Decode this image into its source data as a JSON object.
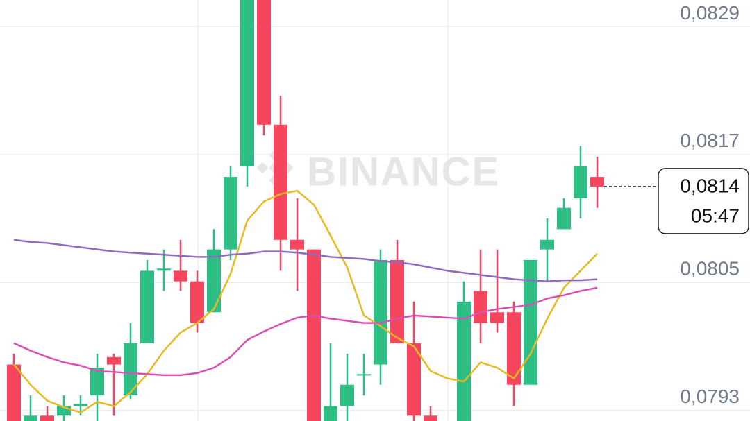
{
  "chart_data": {
    "type": "candlestick",
    "watermark": "BINANCE",
    "categories": [
      null,
      null,
      null,
      null,
      null,
      null,
      null,
      null,
      null,
      null,
      null,
      null,
      null,
      null,
      null,
      null,
      null,
      null,
      null,
      null,
      null,
      null,
      null,
      null,
      null,
      null,
      null,
      null,
      null,
      null,
      null,
      null,
      null,
      null,
      null,
      null
    ],
    "open": [
      0.07973,
      0.0792,
      0.07925,
      0.07925,
      0.07934,
      0.07944,
      0.0798,
      0.07944,
      0.07993,
      0.08061,
      0.08061,
      0.08051,
      0.08022,
      0.08081,
      0.08159,
      0.08315,
      0.08198,
      0.0809,
      0.08081,
      0.0792,
      0.07934,
      0.07964,
      0.07973,
      0.08071,
      0.07993,
      0.07925,
      null,
      0.0792,
      0.08042,
      0.08022,
      0.08022,
      0.07954,
      0.08081,
      0.081,
      0.08129,
      0.08149
    ],
    "high": [
      0.07983,
      0.07944,
      0.07934,
      0.07944,
      0.07944,
      0.07983,
      0.07983,
      0.08012,
      0.08071,
      0.08081,
      0.0809,
      0.08061,
      0.081,
      0.08159,
      0.08315,
      0.08315,
      0.08225,
      0.08129,
      0.08081,
      0.07993,
      0.07983,
      0.07983,
      0.08081,
      0.0809,
      0.08032,
      0.07934,
      null,
      0.08051,
      0.08081,
      0.08081,
      0.08032,
      0.08071,
      0.0811,
      0.08129,
      0.08178,
      0.08168
    ],
    "low": [
      0.0792,
      0.0792,
      0.0792,
      0.0792,
      0.07925,
      0.0792,
      0.07925,
      0.0794,
      0.07993,
      0.08042,
      0.08042,
      0.08003,
      0.08022,
      0.08071,
      0.0814,
      0.08188,
      0.08061,
      0.08042,
      0.0792,
      0.0792,
      0.0792,
      0.07944,
      0.07954,
      0.07993,
      0.0792,
      0.0792,
      null,
      0.0792,
      0.07993,
      0.08003,
      0.07934,
      0.07954,
      0.08051,
      0.081,
      0.0811,
      0.0812
    ],
    "close": [
      0.0792,
      0.07925,
      0.0792,
      0.07934,
      0.07936,
      0.0797,
      0.07973,
      0.07993,
      0.08061,
      0.08063,
      0.08051,
      0.08012,
      0.08081,
      0.08149,
      0.08315,
      0.08198,
      0.0809,
      0.08081,
      0.0792,
      0.07934,
      0.07954,
      0.07964,
      0.08071,
      0.07993,
      0.07925,
      0.0792,
      null,
      0.08032,
      0.08012,
      0.08012,
      0.07954,
      0.08071,
      0.0809,
      0.0812,
      0.08159,
      0.0814
    ],
    "up_color": "#2ebd85",
    "down_color": "#f6465d",
    "series": [
      {
        "color": "#e8b923",
        "values": [
          0.07973,
          0.07954,
          0.07939,
          0.07933,
          0.07928,
          0.07938,
          0.07934,
          0.07947,
          0.07964,
          0.07986,
          0.08003,
          0.08012,
          0.08025,
          0.08058,
          0.08108,
          0.08126,
          0.08133,
          0.08136,
          0.08123,
          0.08094,
          0.08064,
          0.08019,
          0.08009,
          0.07998,
          0.0799,
          0.07967,
          0.0796,
          0.07957,
          0.07975,
          0.0797,
          0.0796,
          0.07983,
          0.08016,
          0.08045,
          0.08061,
          0.08077
        ]
      },
      {
        "color": "#d94fb6",
        "values": [
          0.07993,
          0.07986,
          0.0798,
          0.07975,
          0.07972,
          0.07967,
          0.07966,
          0.07965,
          0.07964,
          0.07963,
          0.07963,
          0.07965,
          0.0797,
          0.0798,
          0.07996,
          0.08004,
          0.08011,
          0.08017,
          0.08019,
          0.08016,
          0.08014,
          0.08012,
          0.08012,
          0.08016,
          0.08019,
          0.08018,
          0.08017,
          0.08016,
          0.08022,
          0.08025,
          0.08027,
          0.08029,
          0.08035,
          0.08038,
          0.08042,
          0.08045
        ]
      },
      {
        "color": "#8e6bbf",
        "values": [
          0.0809,
          0.08088,
          0.08087,
          0.08085,
          0.08083,
          0.08081,
          0.08079,
          0.08078,
          0.08077,
          0.08076,
          0.08075,
          0.08074,
          0.08074,
          0.08076,
          0.08077,
          0.08079,
          0.08079,
          0.08078,
          0.08076,
          0.08074,
          0.08073,
          0.08072,
          0.0807,
          0.08069,
          0.08067,
          0.08064,
          0.08061,
          0.08059,
          0.08057,
          0.08055,
          0.08053,
          0.08052,
          0.08051,
          0.08052,
          0.08052,
          0.08053
        ]
      }
    ],
    "last_price": {
      "value": 0.0814,
      "label": "0,0814"
    },
    "countdown": "05:47",
    "ylim": [
      0.0792,
      0.08315
    ],
    "yticks": [
      {
        "value": 0.0829,
        "label": "0,0829"
      },
      {
        "value": 0.0817,
        "label": "0,0817"
      },
      {
        "value": 0.0805,
        "label": "0,0805"
      },
      {
        "value": 0.0793,
        "label": "0,0793"
      }
    ],
    "grid": true
  }
}
